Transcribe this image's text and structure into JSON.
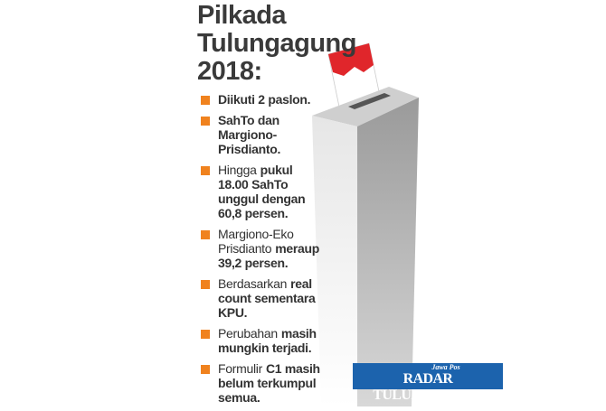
{
  "title": {
    "lines": [
      "Pilkada",
      "Tulungagung",
      "2018:"
    ]
  },
  "items": [
    [
      [
        {
          "text": "Diikuti 2 paslon.",
          "bold": true
        }
      ]
    ],
    [
      [
        {
          "text": "SahTo dan",
          "bold": true
        }
      ],
      [
        {
          "text": "Margiono-",
          "bold": true
        }
      ],
      [
        {
          "text": "Prisdianto.",
          "bold": true
        }
      ]
    ],
    [
      [
        {
          "text": "Hingga",
          "bold": false
        },
        {
          "text": "pukul",
          "bold": true
        }
      ],
      [
        {
          "text": "18.00 SahTo",
          "bold": true
        }
      ],
      [
        {
          "text": "unggul dengan",
          "bold": true
        }
      ],
      [
        {
          "text": "60,8 persen.",
          "bold": true
        }
      ]
    ],
    [
      [
        {
          "text": "Margiono-Eko",
          "bold": false
        }
      ],
      [
        {
          "text": "Prisdianto",
          "bold": false
        },
        {
          "text": "meraup",
          "bold": true
        }
      ],
      [
        {
          "text": "39,2 persen.",
          "bold": true
        }
      ]
    ],
    [
      [
        {
          "text": "Berdasarkan",
          "bold": false
        },
        {
          "text": "real",
          "bold": true
        }
      ],
      [
        {
          "text": "count sementara",
          "bold": true
        }
      ],
      [
        {
          "text": "KPU.",
          "bold": true
        }
      ]
    ],
    [
      [
        {
          "text": "Perubahan",
          "bold": false
        },
        {
          "text": "masih",
          "bold": true
        }
      ],
      [
        {
          "text": "mungkin terjadi.",
          "bold": true
        }
      ]
    ],
    [
      [
        {
          "text": "Formulir",
          "bold": false
        },
        {
          "text": "C1 masih",
          "bold": true
        }
      ],
      [
        {
          "text": "belum terkumpul",
          "bold": true
        }
      ],
      [
        {
          "text": "semua.",
          "bold": true
        }
      ]
    ]
  ],
  "logo": {
    "small": "Jawa Pos",
    "name": "RADAR TULUNGAGUNG"
  }
}
